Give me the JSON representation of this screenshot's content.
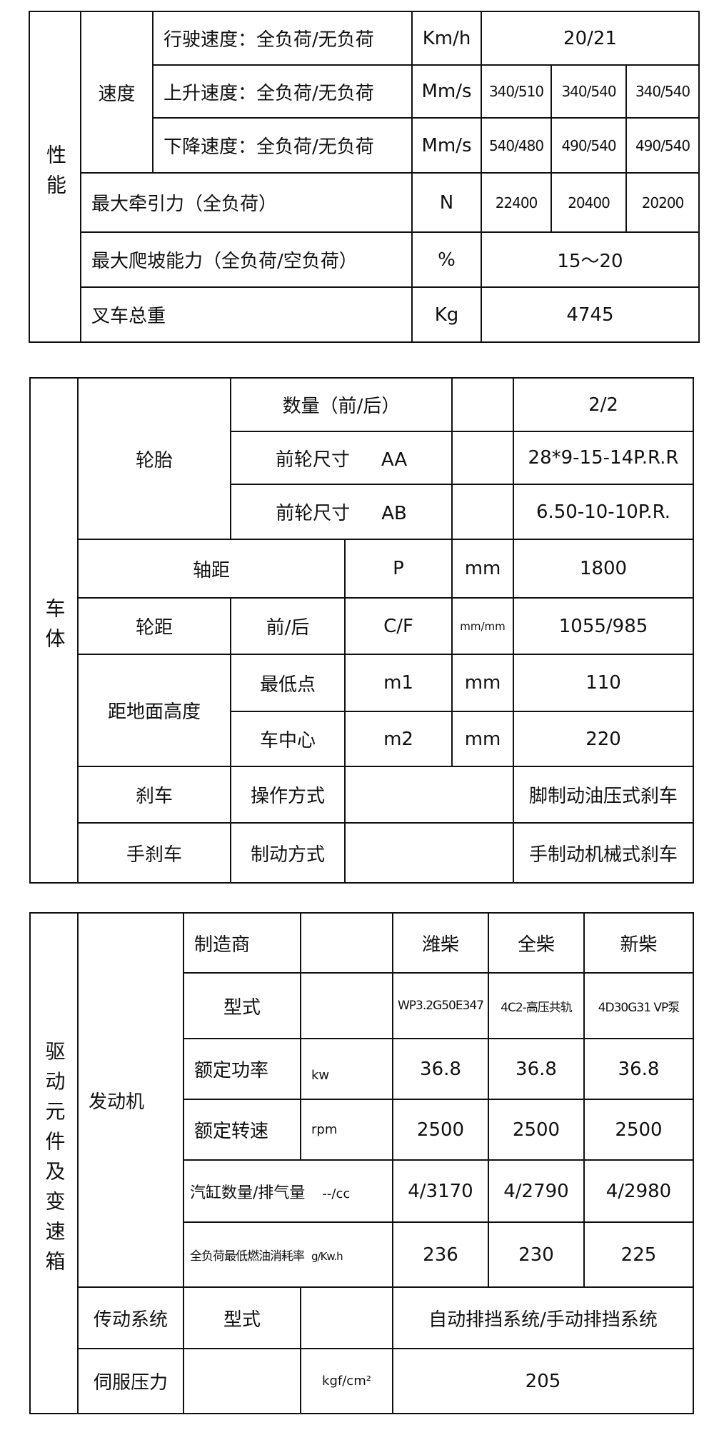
{
  "performance": {
    "section": "性能",
    "speed_group": "速度",
    "rows": [
      {
        "label": "行驶速度：全负荷/无负荷",
        "unit": "Km/h",
        "value": "20/21"
      },
      {
        "label": "上升速度：全负荷/无负荷",
        "unit": "Mm/s",
        "values": [
          "340/510",
          "340/540",
          "340/540"
        ]
      },
      {
        "label": "下降速度：全负荷/无负荷",
        "unit": "Mm/s",
        "values": [
          "540/480",
          "490/540",
          "490/540"
        ]
      },
      {
        "label": "最大牵引力（全负荷）",
        "unit": "N",
        "values": [
          "22400",
          "20400",
          "20200"
        ]
      },
      {
        "label": "最大爬坡能力（全负荷/空负荷）",
        "unit": "%",
        "value": "15～20"
      },
      {
        "label": "叉车总重",
        "unit": "Kg",
        "value": "4745"
      }
    ]
  },
  "body": {
    "section": "车体",
    "tire": "轮胎",
    "tire_rows": [
      {
        "label": "数量（前/后）",
        "value": "2/2"
      },
      {
        "label": "前轮尺寸",
        "code": "AA",
        "value": "28*9-15-14P.R.R"
      },
      {
        "label": "前轮尺寸",
        "code": "AB",
        "value": "6.50-10-10P.R."
      }
    ],
    "wheelbase": {
      "label": "轴距",
      "code": "P",
      "unit": "mm",
      "value": "1800"
    },
    "track": {
      "label": "轮距",
      "sub": "前/后",
      "code": "C/F",
      "unit": "mm/mm",
      "value": "1055/985"
    },
    "clearance": {
      "label": "距地面高度",
      "rows": [
        {
          "sub": "最低点",
          "code": "m1",
          "unit": "mm",
          "value": "110"
        },
        {
          "sub": "车中心",
          "code": "m2",
          "unit": "mm",
          "value": "220"
        }
      ]
    },
    "brake": {
      "label": "刹车",
      "sub": "操作方式",
      "value": "脚制动油压式刹车"
    },
    "handbrake": {
      "label": "手刹车",
      "sub": "制动方式",
      "value": "手制动机械式刹车"
    }
  },
  "drive": {
    "section": "驱动元件及变速箱",
    "engine": "发动机",
    "engine_rows": [
      {
        "label": "制造商",
        "unit": "",
        "values": [
          "潍柴",
          "全柴",
          "新柴"
        ]
      },
      {
        "label": "型式",
        "unit": "",
        "values": [
          "WP3.2G50E347",
          "4C2-高压共轨",
          "4D30G31 VP泵"
        ]
      },
      {
        "label": "额定功率",
        "unit": "kw",
        "values": [
          "36.8",
          "36.8",
          "36.8"
        ]
      },
      {
        "label": "额定转速",
        "unit": "rpm",
        "values": [
          "2500",
          "2500",
          "2500"
        ]
      },
      {
        "label": "汽缸数量/排气量",
        "unit": "--/cc",
        "values": [
          "4/3170",
          "4/2790",
          "4/2980"
        ]
      },
      {
        "label": "全负荷最低燃油消耗率",
        "unit": "g/Kw.h",
        "values": [
          "236",
          "230",
          "225"
        ]
      }
    ],
    "transmission": {
      "label": "传动系统",
      "sub": "型式",
      "value": "自动排挡系统/手动排挡系统"
    },
    "servo": {
      "label": "伺服压力",
      "unit": "kgf/cm²",
      "value": "205"
    }
  }
}
